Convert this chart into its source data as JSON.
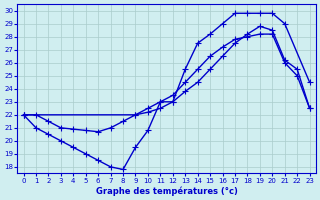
{
  "xlabel": "Graphe des températures (°c)",
  "line_color": "#0000cc",
  "bg_color": "#d0eef0",
  "grid_color": "#aacccc",
  "ylim": [
    17.5,
    30.5
  ],
  "yticks": [
    18,
    19,
    20,
    21,
    22,
    23,
    24,
    25,
    26,
    27,
    28,
    29,
    30
  ],
  "xticks": [
    0,
    1,
    2,
    3,
    4,
    5,
    6,
    7,
    8,
    9,
    10,
    11,
    12,
    13,
    14,
    15,
    16,
    17,
    18,
    19,
    20,
    21,
    22,
    23
  ],
  "line_width": 1.0,
  "marker_size": 4,
  "curve1_x": [
    0,
    1,
    2,
    3,
    4,
    5,
    6,
    7,
    8,
    9,
    10,
    11,
    12,
    13,
    14,
    15,
    16,
    17,
    18,
    19,
    20,
    21,
    22,
    23
  ],
  "curve1_y": [
    22.0,
    22.0,
    21.5,
    21.0,
    20.9,
    20.8,
    20.7,
    21.0,
    21.5,
    22.0,
    22.5,
    23.0,
    23.5,
    24.5,
    25.5,
    26.5,
    27.2,
    27.8,
    28.0,
    28.2,
    28.2,
    26.0,
    25.0,
    22.5
  ],
  "curve2_x": [
    0,
    1,
    2,
    3,
    4,
    5,
    6,
    7,
    8,
    9,
    10,
    11,
    12,
    13,
    14,
    15,
    16,
    17,
    18,
    19,
    20,
    21,
    23
  ],
  "curve2_y": [
    22.0,
    21.0,
    20.5,
    20.0,
    19.5,
    19.0,
    18.5,
    18.0,
    17.8,
    19.5,
    20.8,
    23.0,
    23.0,
    25.5,
    27.5,
    28.2,
    29.0,
    29.8,
    29.8,
    29.8,
    29.8,
    29.0,
    24.5
  ],
  "curve3_x": [
    0,
    9,
    10,
    11,
    12,
    13,
    14,
    15,
    16,
    17,
    18,
    19,
    20,
    21,
    22,
    23
  ],
  "curve3_y": [
    22.0,
    22.0,
    22.2,
    22.5,
    23.0,
    23.8,
    24.5,
    25.5,
    26.5,
    27.5,
    28.2,
    28.8,
    28.5,
    26.2,
    25.5,
    22.5
  ]
}
